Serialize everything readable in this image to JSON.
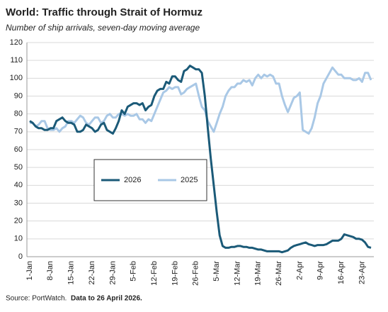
{
  "chart_data": {
    "type": "line",
    "title": "World: Traffic through Strait of Hormuz",
    "subtitle": "Number of ship arrivals, seven-day moving average",
    "source": "Source: PortWatch.",
    "note": "Data to 26 April 2026.",
    "categories": [
      "1-Jan",
      null,
      null,
      null,
      null,
      null,
      null,
      "8-Jan",
      null,
      null,
      null,
      null,
      null,
      null,
      "15-Jan",
      null,
      null,
      null,
      null,
      null,
      null,
      "22-Jan",
      null,
      null,
      null,
      null,
      null,
      null,
      "29-Jan",
      null,
      null,
      null,
      null,
      null,
      null,
      "5-Feb",
      null,
      null,
      null,
      null,
      null,
      null,
      "12-Feb",
      null,
      null,
      null,
      null,
      null,
      null,
      "19-Feb",
      null,
      null,
      null,
      null,
      null,
      null,
      "26-Feb",
      null,
      null,
      null,
      null,
      null,
      null,
      "5-Mar",
      null,
      null,
      null,
      null,
      null,
      null,
      "12-Mar",
      null,
      null,
      null,
      null,
      null,
      null,
      "19-Mar",
      null,
      null,
      null,
      null,
      null,
      null,
      "26-Mar",
      null,
      null,
      null,
      null,
      null,
      null,
      "2-Apr",
      null,
      null,
      null,
      null,
      null,
      null,
      "9-Apr",
      null,
      null,
      null,
      null,
      null,
      null,
      "16-Apr",
      null,
      null,
      null,
      null,
      null,
      null,
      "23-Apr",
      null,
      null,
      null
    ],
    "series": [
      {
        "name": "2026",
        "color": "#1b5a78",
        "values": [
          76,
          75,
          73,
          72,
          72,
          71,
          71,
          72,
          72,
          76,
          77,
          78,
          76,
          75,
          75,
          74,
          70,
          70,
          71,
          74,
          73,
          72,
          70,
          71,
          74,
          75,
          71,
          70,
          69,
          72,
          76,
          82,
          80,
          84,
          85,
          86,
          86,
          85,
          86,
          82,
          84,
          85,
          90,
          93,
          94,
          94,
          98,
          97,
          101,
          101,
          99,
          98,
          104,
          105,
          107,
          106,
          105,
          105,
          103,
          90,
          72,
          55,
          40,
          25,
          12,
          6,
          5,
          5,
          5.5,
          5.5,
          6,
          6,
          5.5,
          5.5,
          5,
          5,
          4.5,
          4,
          4,
          3.5,
          3,
          3,
          3,
          3,
          3,
          2.5,
          3,
          3.5,
          5,
          6,
          6.5,
          7,
          7.5,
          8,
          7,
          6.5,
          6,
          6.5,
          6.5,
          6.5,
          7,
          8,
          9,
          9,
          9,
          10,
          12.5,
          12,
          11.5,
          11,
          10,
          10,
          9.5,
          8,
          5.5,
          5
        ]
      },
      {
        "name": "2025",
        "color": "#a9c8e6",
        "values": [
          75,
          75,
          73,
          74,
          76,
          76,
          72,
          71,
          71,
          72,
          70,
          72,
          73,
          76,
          76,
          75,
          77,
          79,
          78,
          75,
          74,
          76,
          78,
          78,
          75,
          76,
          79,
          80,
          78,
          78,
          80,
          80,
          79,
          80,
          79,
          79,
          80,
          77,
          77,
          75,
          77,
          76,
          80,
          84,
          88,
          92,
          93,
          95,
          94,
          95,
          95,
          91,
          92,
          94,
          95,
          96,
          97,
          90,
          84,
          82,
          76,
          73,
          70,
          75,
          80,
          84,
          90,
          93,
          95,
          95,
          97,
          97,
          99,
          98,
          99,
          96,
          100,
          102,
          100,
          102,
          101,
          102,
          101,
          97,
          97,
          90,
          85,
          81,
          85,
          89,
          90,
          92,
          71,
          70,
          69,
          72,
          78,
          86,
          90,
          97,
          100,
          103,
          106,
          104,
          102,
          102,
          100,
          100,
          100,
          99,
          99,
          100,
          98,
          103,
          103,
          99
        ]
      }
    ],
    "ylim": [
      0,
      120
    ],
    "yticks": [
      0,
      10,
      20,
      30,
      40,
      50,
      60,
      70,
      80,
      90,
      100,
      110,
      120
    ],
    "grid": true,
    "legend": "center-left"
  }
}
